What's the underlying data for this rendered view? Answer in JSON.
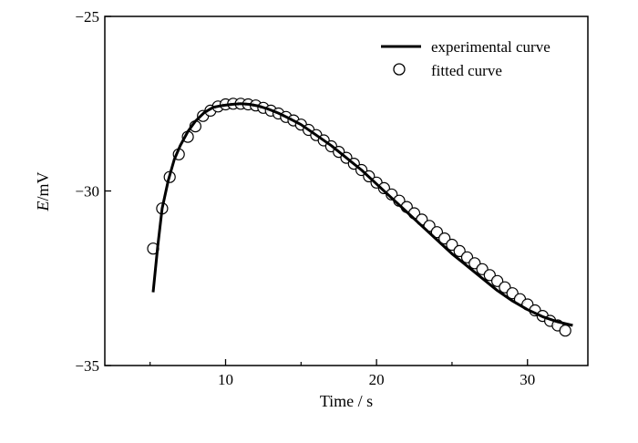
{
  "chart_data": {
    "type": "line",
    "title": "",
    "xlabel": "Time / s",
    "ylabel_italic": "E",
    "ylabel_unit": "/mV",
    "xlim": [
      2,
      34
    ],
    "ylim": [
      -35,
      -25
    ],
    "x_ticks": [
      10,
      20,
      30
    ],
    "x_tick_labels": [
      "10",
      "20",
      "30"
    ],
    "y_ticks": [
      -25,
      -30,
      -35
    ],
    "y_tick_labels": [
      "−25",
      "−30",
      "−35"
    ],
    "grid": false,
    "legend_position": "top-right",
    "series": [
      {
        "name": "experimental curve",
        "style": "solid-line",
        "color": "#000000",
        "x": [
          5.2,
          5.5,
          5.8,
          6.2,
          6.6,
          7.0,
          7.5,
          8.0,
          8.6,
          9.2,
          9.8,
          10.4,
          11.0,
          11.6,
          12.2,
          12.8,
          13.5,
          14.2,
          15.0,
          16.0,
          17.0,
          18.0,
          19.0,
          20.0,
          21.0,
          22.0,
          23.0,
          24.0,
          25.0,
          26.0,
          27.0,
          28.0,
          29.0,
          30.0,
          31.0,
          32.0,
          33.0
        ],
        "y": [
          -32.9,
          -31.6,
          -30.5,
          -29.7,
          -29.1,
          -28.7,
          -28.3,
          -28.0,
          -27.75,
          -27.6,
          -27.55,
          -27.52,
          -27.5,
          -27.52,
          -27.57,
          -27.65,
          -27.77,
          -27.92,
          -28.1,
          -28.4,
          -28.7,
          -29.05,
          -29.4,
          -29.8,
          -30.2,
          -30.6,
          -31.0,
          -31.4,
          -31.8,
          -32.15,
          -32.5,
          -32.85,
          -33.15,
          -33.4,
          -33.6,
          -33.75,
          -33.85
        ]
      },
      {
        "name": "fitted curve",
        "style": "open-circles",
        "color": "#000000",
        "x": [
          5.2,
          5.8,
          6.3,
          6.9,
          7.5,
          8.0,
          8.5,
          9.0,
          9.5,
          10.0,
          10.5,
          11.0,
          11.5,
          12.0,
          12.5,
          13.0,
          13.5,
          14.0,
          14.5,
          15.0,
          15.5,
          16.0,
          16.5,
          17.0,
          17.5,
          18.0,
          18.5,
          19.0,
          19.5,
          20.0,
          20.5,
          21.0,
          21.5,
          22.0,
          22.5,
          23.0,
          23.5,
          24.0,
          24.5,
          25.0,
          25.5,
          26.0,
          26.5,
          27.0,
          27.5,
          28.0,
          28.5,
          29.0,
          29.5,
          30.0,
          30.5,
          31.0,
          31.5,
          32.0,
          32.5
        ],
        "y": [
          -31.65,
          -30.5,
          -29.6,
          -28.95,
          -28.45,
          -28.15,
          -27.85,
          -27.7,
          -27.58,
          -27.52,
          -27.5,
          -27.5,
          -27.52,
          -27.55,
          -27.62,
          -27.7,
          -27.78,
          -27.88,
          -27.98,
          -28.1,
          -28.25,
          -28.4,
          -28.55,
          -28.72,
          -28.88,
          -29.05,
          -29.22,
          -29.4,
          -29.58,
          -29.76,
          -29.92,
          -30.1,
          -30.28,
          -30.46,
          -30.64,
          -30.82,
          -31.0,
          -31.18,
          -31.36,
          -31.54,
          -31.72,
          -31.9,
          -32.07,
          -32.24,
          -32.41,
          -32.58,
          -32.76,
          -32.93,
          -33.1,
          -33.25,
          -33.42,
          -33.58,
          -33.72,
          -33.85,
          -34.0
        ]
      }
    ]
  }
}
